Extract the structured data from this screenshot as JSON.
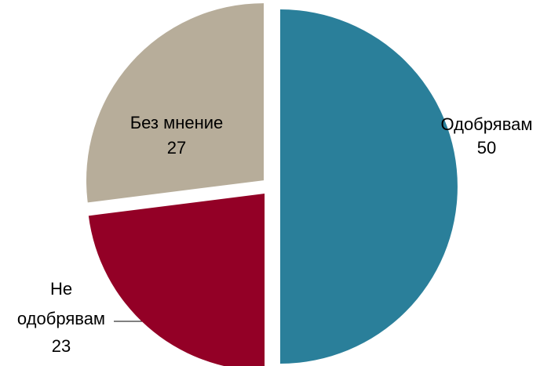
{
  "chart_data": {
    "type": "pie",
    "categories": [
      "Одобрявам",
      "Не одобрявам",
      "Без мнение"
    ],
    "values": [
      50,
      23,
      27
    ],
    "colors": [
      "#2a7f9a",
      "#930026",
      "#b7ad9a"
    ]
  }
}
